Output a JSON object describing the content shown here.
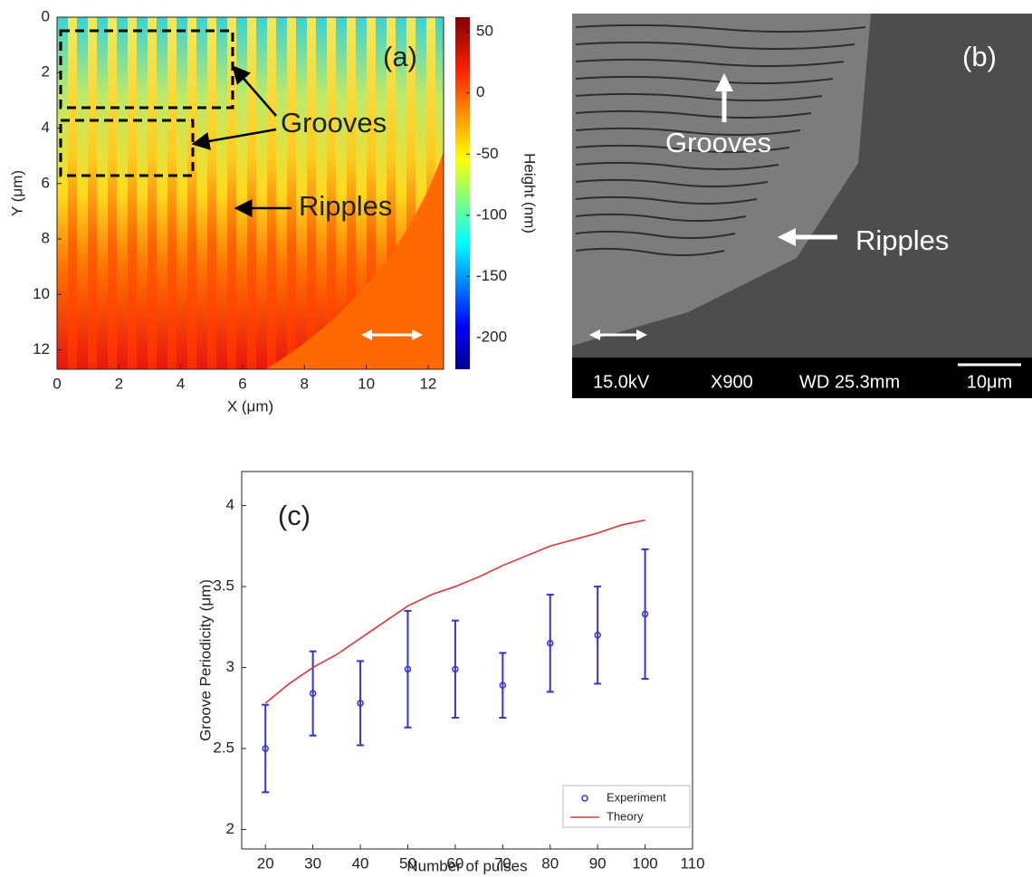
{
  "chart_data": [
    {
      "type": "heatmap",
      "label": "(a)",
      "xlabel": "X (μm)",
      "ylabel": "Y (μm)",
      "xlim": [
        0,
        12.5
      ],
      "ylim": [
        12.7,
        0
      ],
      "xticks": [
        0,
        2,
        4,
        6,
        8,
        10,
        12
      ],
      "yticks": [
        0,
        2,
        4,
        6,
        8,
        10,
        12
      ],
      "colorbar": {
        "label": "Height (nm)",
        "lim": [
          -226,
          62
        ],
        "ticks": [
          50,
          0,
          -50,
          -100,
          -150,
          -200
        ]
      },
      "annotations": [
        "Grooves",
        "Ripples"
      ]
    },
    {
      "type": "image",
      "label": "(b)",
      "annotations": [
        "Grooves",
        "Ripples"
      ],
      "footer": [
        "15.0kV",
        "X900",
        "WD 25.3mm",
        "10μm"
      ]
    },
    {
      "type": "errorbar",
      "label": "(c)",
      "xlabel": "Number of pulses",
      "ylabel": "Groove Periodicity (μm)",
      "xlim": [
        15,
        110
      ],
      "xticks": [
        20,
        30,
        40,
        50,
        60,
        70,
        80,
        90,
        100,
        110
      ],
      "ylim": [
        1.88,
        4.21
      ],
      "yticks": [
        2,
        2.5,
        3,
        3.5,
        4
      ],
      "legend": "lower right",
      "series": [
        {
          "name": "Experiment",
          "color": "#3333d6",
          "x": [
            20,
            30,
            40,
            50,
            60,
            70,
            80,
            90,
            100
          ],
          "values": [
            2.5,
            2.84,
            2.78,
            2.99,
            2.99,
            2.89,
            3.15,
            3.2,
            3.33
          ],
          "errors": [
            0.27,
            0.26,
            0.26,
            0.36,
            0.3,
            0.2,
            0.3,
            0.3,
            0.4
          ]
        },
        {
          "name": "Theory",
          "color": "#e03535",
          "x": [
            20,
            25,
            30,
            35,
            40,
            45,
            50,
            55,
            60,
            65,
            70,
            75,
            80,
            85,
            90,
            95,
            100
          ],
          "values": [
            2.78,
            2.9,
            3.0,
            3.08,
            3.18,
            3.28,
            3.38,
            3.45,
            3.5,
            3.56,
            3.63,
            3.69,
            3.75,
            3.79,
            3.83,
            3.88,
            3.91
          ]
        }
      ]
    }
  ]
}
